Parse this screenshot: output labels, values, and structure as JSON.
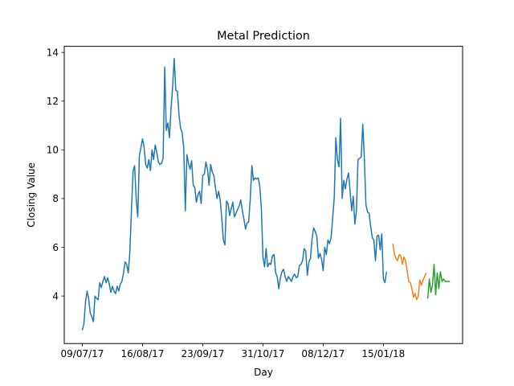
{
  "chart_data": {
    "type": "line",
    "title": "Metal Prediction",
    "xlabel": "Day",
    "ylabel": "Closing Value",
    "x_tick_labels": [
      "09/07/17",
      "16/08/17",
      "23/09/17",
      "31/10/17",
      "08/12/17",
      "15/01/18"
    ],
    "x_tick_index": [
      0,
      38,
      76,
      114,
      152,
      190
    ],
    "y_ticks": [
      4,
      6,
      8,
      10,
      12,
      14
    ],
    "xlim": [
      -11.4,
      240
    ],
    "ylim": [
      2.05,
      14.25
    ],
    "grid": false,
    "legend": "none",
    "series": [
      {
        "color": "#1f77b4",
        "start_index": 0,
        "values": [
          2.6,
          2.85,
          3.75,
          4.2,
          3.9,
          3.3,
          3.15,
          2.95,
          4.0,
          3.9,
          3.85,
          4.55,
          4.35,
          4.6,
          4.8,
          4.55,
          4.75,
          4.5,
          4.15,
          4.4,
          4.2,
          4.1,
          4.4,
          4.2,
          4.5,
          4.6,
          4.95,
          5.4,
          5.3,
          4.95,
          5.8,
          7.5,
          9.1,
          9.35,
          8.0,
          7.25,
          9.75,
          10.1,
          10.45,
          10.1,
          9.4,
          9.25,
          9.6,
          9.15,
          10.0,
          9.6,
          10.2,
          9.9,
          9.5,
          9.4,
          9.45,
          9.65,
          13.4,
          10.8,
          11.1,
          10.5,
          11.7,
          12.6,
          13.75,
          12.45,
          12.4,
          11.45,
          10.9,
          10.7,
          10.1,
          7.5,
          9.8,
          9.45,
          9.2,
          9.55,
          8.55,
          8.45,
          7.85,
          8.15,
          8.3,
          7.8,
          8.95,
          9.0,
          9.5,
          9.2,
          8.55,
          9.4,
          9.1,
          8.95,
          8.45,
          8.0,
          8.3,
          7.95,
          7.2,
          6.3,
          6.1,
          7.9,
          7.8,
          7.3,
          7.6,
          7.85,
          7.25,
          7.4,
          7.55,
          7.7,
          7.95,
          7.5,
          7.15,
          6.75,
          7.0,
          7.05,
          8.0,
          9.35,
          8.75,
          8.85,
          8.8,
          8.85,
          8.5,
          7.6,
          5.6,
          5.2,
          5.95,
          5.2,
          5.35,
          5.3,
          5.65,
          5.7,
          4.95,
          4.8,
          4.3,
          4.75,
          5.0,
          5.1,
          4.8,
          4.6,
          4.8,
          4.7,
          4.6,
          4.8,
          4.9,
          4.75,
          4.8,
          5.25,
          5.3,
          5.45,
          5.95,
          5.85,
          4.85,
          5.4,
          5.55,
          6.35,
          6.8,
          6.65,
          6.45,
          5.55,
          5.75,
          5.5,
          5.05,
          6.0,
          5.7,
          6.3,
          6.15,
          6.4,
          7.2,
          8.05,
          10.5,
          9.6,
          9.3,
          11.3,
          8.0,
          8.75,
          8.4,
          8.8,
          9.05,
          8.3,
          7.5,
          8.1,
          6.95,
          7.5,
          9.6,
          9.65,
          9.7,
          11.05,
          9.65,
          7.75,
          7.45,
          7.4,
          6.85,
          6.4,
          6.3,
          5.45,
          6.45,
          6.5,
          5.9,
          6.55,
          4.7,
          4.55,
          5.0
        ]
      },
      {
        "color": "#ff7f0e",
        "start_index": 196,
        "values": [
          6.15,
          5.7,
          5.55,
          5.45,
          5.7,
          5.65,
          5.3,
          5.6,
          5.45,
          5.05,
          4.6,
          4.55,
          4.3,
          3.95,
          4.1,
          3.85,
          4.0,
          4.65,
          4.45,
          4.65,
          4.8,
          4.95
        ]
      },
      {
        "color": "#2ca02c",
        "start_index": 218,
        "values": [
          3.9,
          4.7,
          4.15,
          4.45,
          5.3,
          4.05,
          4.95,
          4.3,
          5.0,
          4.6,
          4.7,
          4.6,
          4.6,
          4.6,
          4.6
        ]
      }
    ]
  }
}
